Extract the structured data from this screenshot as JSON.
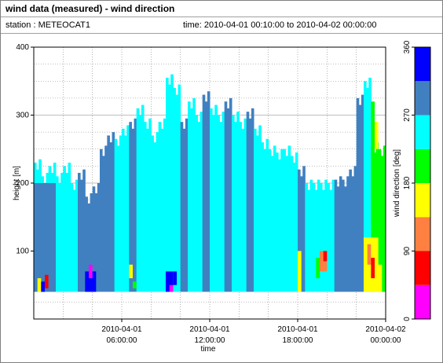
{
  "header": {
    "title": "wind data (measured) - wind direction",
    "station": "station : METEOCAT1",
    "time_range": "time: 2010-04-01 00:10:00 to 2010-04-02 00:00:00"
  },
  "chart_data": {
    "type": "heatmap",
    "xlabel": "time",
    "ylabel": "height [m]",
    "x_ticks": [
      {
        "hours": 6,
        "line1": "2010-04-01",
        "line2": "06:00:00"
      },
      {
        "hours": 12,
        "line1": "2010-04-01",
        "line2": "12:00:00"
      },
      {
        "hours": 18,
        "line1": "2010-04-01",
        "line2": "18:00:00"
      },
      {
        "hours": 24,
        "line1": "2010-04-02",
        "line2": "00:00:00"
      }
    ],
    "xlim_hours": [
      0,
      24
    ],
    "ylim": [
      0,
      400
    ],
    "y_ticks": [
      100,
      200,
      300,
      400
    ],
    "grid": true,
    "colorbar": {
      "label": "wind direction [deg]",
      "ticks": [
        0,
        90,
        180,
        270,
        360
      ],
      "bins": [
        {
          "from": 0,
          "to": 45,
          "color": "#ff00ff"
        },
        {
          "from": 45,
          "to": 90,
          "color": "#ff0000"
        },
        {
          "from": 90,
          "to": 135,
          "color": "#ff8040"
        },
        {
          "from": 135,
          "to": 180,
          "color": "#ffff00"
        },
        {
          "from": 180,
          "to": 225,
          "color": "#00ff00"
        },
        {
          "from": 225,
          "to": 270,
          "color": "#00ffff"
        },
        {
          "from": 270,
          "to": 315,
          "color": "#4080c0"
        },
        {
          "from": 315,
          "to": 360,
          "color": "#0000ff"
        }
      ]
    },
    "data_floor_m": 40,
    "column_width_hours": 0.1667,
    "columns": [
      {
        "t": 0.0,
        "top": 230,
        "dir": 250
      },
      {
        "t": 0.5,
        "top": 210,
        "dir": 250
      },
      {
        "t": 1.0,
        "top": 225,
        "dir": 250
      },
      {
        "t": 1.5,
        "top": 210,
        "dir": 250
      },
      {
        "t": 2.0,
        "top": 225,
        "dir": 250
      },
      {
        "t": 2.5,
        "top": 200,
        "dir": 250
      },
      {
        "t": 3.0,
        "top": 215,
        "dir": 280
      },
      {
        "t": 3.5,
        "top": 180,
        "dir": 280
      },
      {
        "t": 4.0,
        "top": 195,
        "dir": 280
      },
      {
        "t": 4.5,
        "top": 250,
        "dir": 280
      },
      {
        "t": 5.0,
        "top": 270,
        "dir": 280
      },
      {
        "t": 5.5,
        "top": 265,
        "dir": 250
      },
      {
        "t": 6.0,
        "top": 280,
        "dir": 250
      },
      {
        "t": 6.5,
        "top": 290,
        "dir": 280
      },
      {
        "t": 7.0,
        "top": 310,
        "dir": 250
      },
      {
        "t": 7.5,
        "top": 290,
        "dir": 250
      },
      {
        "t": 8.0,
        "top": 270,
        "dir": 250
      },
      {
        "t": 8.5,
        "top": 290,
        "dir": 250
      },
      {
        "t": 9.0,
        "top": 355,
        "dir": 250
      },
      {
        "t": 9.5,
        "top": 340,
        "dir": 250
      },
      {
        "t": 10.0,
        "top": 290,
        "dir": 280
      },
      {
        "t": 10.5,
        "top": 320,
        "dir": 250
      },
      {
        "t": 11.0,
        "top": 300,
        "dir": 250
      },
      {
        "t": 11.5,
        "top": 330,
        "dir": 280
      },
      {
        "t": 12.0,
        "top": 310,
        "dir": 250
      },
      {
        "t": 12.5,
        "top": 300,
        "dir": 250
      },
      {
        "t": 13.0,
        "top": 320,
        "dir": 280
      },
      {
        "t": 13.5,
        "top": 300,
        "dir": 250
      },
      {
        "t": 14.0,
        "top": 290,
        "dir": 250
      },
      {
        "t": 14.5,
        "top": 305,
        "dir": 280
      },
      {
        "t": 15.0,
        "top": 280,
        "dir": 250
      },
      {
        "t": 15.5,
        "top": 260,
        "dir": 250
      },
      {
        "t": 16.0,
        "top": 250,
        "dir": 250
      },
      {
        "t": 16.5,
        "top": 245,
        "dir": 250
      },
      {
        "t": 17.0,
        "top": 250,
        "dir": 250
      },
      {
        "t": 17.5,
        "top": 240,
        "dir": 250
      },
      {
        "t": 18.0,
        "top": 220,
        "dir": 280
      },
      {
        "t": 18.5,
        "top": 200,
        "dir": 250
      },
      {
        "t": 19.0,
        "top": 200,
        "dir": 250
      },
      {
        "t": 19.5,
        "top": 200,
        "dir": 250
      },
      {
        "t": 20.0,
        "top": 200,
        "dir": 250
      },
      {
        "t": 20.5,
        "top": 205,
        "dir": 280
      },
      {
        "t": 21.0,
        "top": 205,
        "dir": 280
      },
      {
        "t": 21.5,
        "top": 220,
        "dir": 280
      },
      {
        "t": 22.0,
        "top": 325,
        "dir": 280
      },
      {
        "t": 22.5,
        "top": 350,
        "dir": 250
      },
      {
        "t": 23.0,
        "top": 255,
        "dir": 200
      },
      {
        "t": 23.5,
        "top": 250,
        "dir": 200
      }
    ],
    "patches": [
      {
        "t0": 0.0,
        "t1": 1.5,
        "h0": 40,
        "h1": 200,
        "dir": 280
      },
      {
        "t0": 0.25,
        "t1": 0.5,
        "h0": 40,
        "h1": 60,
        "dir": 140
      },
      {
        "t0": 0.5,
        "t1": 0.75,
        "h0": 40,
        "h1": 55,
        "dir": 320
      },
      {
        "t0": 0.75,
        "t1": 1.0,
        "h0": 45,
        "h1": 65,
        "dir": 60
      },
      {
        "t0": 3.5,
        "t1": 4.25,
        "h0": 40,
        "h1": 70,
        "dir": 330
      },
      {
        "t0": 3.75,
        "t1": 4.0,
        "h0": 60,
        "h1": 80,
        "dir": 20
      },
      {
        "t0": 6.5,
        "t1": 6.75,
        "h0": 60,
        "h1": 80,
        "dir": 150
      },
      {
        "t0": 6.75,
        "t1": 7.0,
        "h0": 45,
        "h1": 55,
        "dir": 200
      },
      {
        "t0": 9.0,
        "t1": 9.5,
        "h0": 40,
        "h1": 70,
        "dir": 330
      },
      {
        "t0": 9.25,
        "t1": 9.5,
        "h0": 40,
        "h1": 50,
        "dir": 20
      },
      {
        "t0": 9.5,
        "t1": 9.75,
        "h0": 50,
        "h1": 70,
        "dir": 330
      },
      {
        "t0": 18.0,
        "t1": 18.25,
        "h0": 40,
        "h1": 100,
        "dir": 150
      },
      {
        "t0": 19.25,
        "t1": 19.5,
        "h0": 60,
        "h1": 90,
        "dir": 200
      },
      {
        "t0": 19.5,
        "t1": 20.0,
        "h0": 70,
        "h1": 100,
        "dir": 120
      },
      {
        "t0": 19.75,
        "t1": 20.0,
        "h0": 85,
        "h1": 100,
        "dir": 60
      },
      {
        "t0": 22.5,
        "t1": 23.5,
        "h0": 40,
        "h1": 120,
        "dir": 160
      },
      {
        "t0": 22.75,
        "t1": 23.0,
        "h0": 80,
        "h1": 110,
        "dir": 120
      },
      {
        "t0": 23.0,
        "t1": 23.25,
        "h0": 60,
        "h1": 90,
        "dir": 60
      },
      {
        "t0": 23.25,
        "t1": 23.75,
        "h0": 40,
        "h1": 80,
        "dir": 150
      },
      {
        "t0": 23.0,
        "t1": 23.25,
        "h0": 140,
        "h1": 320,
        "dir": 200
      },
      {
        "t0": 23.25,
        "t1": 23.5,
        "h0": 250,
        "h1": 290,
        "dir": 150
      }
    ]
  }
}
